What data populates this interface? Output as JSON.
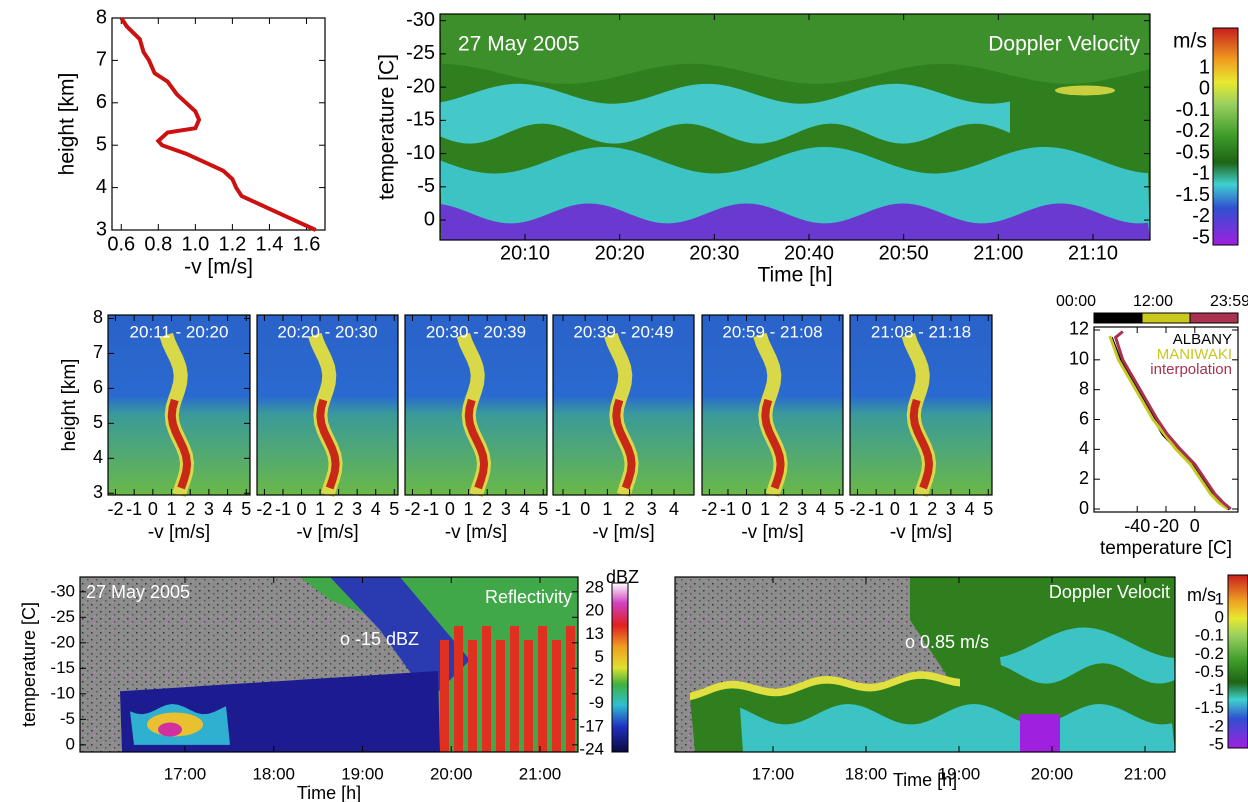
{
  "chart_data": [
    {
      "type": "line",
      "xlabel": "-v [m/s]",
      "ylabel": "height [km]",
      "color": "#cc1111",
      "x": [
        0.6,
        0.63,
        0.7,
        0.72,
        0.75,
        0.78,
        0.85,
        0.9,
        0.95,
        1.0,
        1.02,
        1.0,
        0.85,
        0.8,
        0.82,
        0.95,
        1.05,
        1.15,
        1.2,
        1.22,
        1.25,
        1.35,
        1.45,
        1.55,
        1.65
      ],
      "values": [
        8,
        7.8,
        7.5,
        7.2,
        7,
        6.7,
        6.5,
        6.2,
        6,
        5.8,
        5.6,
        5.4,
        5.3,
        5.1,
        5,
        4.8,
        4.6,
        4.4,
        4.2,
        4,
        3.8,
        3.6,
        3.4,
        3.2,
        3
      ],
      "xlim": [
        0.55,
        1.7
      ],
      "xticks": [
        0.6,
        0.8,
        {
          "value": 1,
          "label": "1.0"
        },
        1.2,
        1.4,
        1.6
      ],
      "ylim": [
        3,
        8
      ],
      "yticks": [
        3,
        4,
        5,
        6,
        7,
        8
      ]
    },
    {
      "type": "heatmap",
      "annotations": [
        "27 May 2005",
        "Doppler Velocity"
      ],
      "xlabel": "Time [h]",
      "ylabel": "temperature [C]",
      "xticks": [
        "20:10",
        "20:20",
        "20:30",
        "20:40",
        "20:50",
        "21:00",
        "21:10"
      ],
      "ylim": [
        3,
        -31
      ],
      "yticks": [
        -30,
        -25,
        -20,
        -15,
        -10,
        -5,
        0
      ],
      "colorbar": {
        "title": "m/s",
        "labels": [
          1,
          0,
          -0.1,
          -0.2,
          -0.5,
          -1,
          -1.5,
          -2,
          -5
        ]
      }
    },
    {
      "type": "heatmap",
      "title": "20:11 - 20:20",
      "xlabel": "-v [m/s]",
      "ylabel": "height [km]",
      "xlim": [
        -2.4,
        5.2
      ],
      "xticks": [
        -2,
        -1,
        0,
        1,
        2,
        3,
        4,
        5
      ],
      "ylim": [
        2.95,
        8.1
      ],
      "yticks": [
        3,
        4,
        5,
        6,
        7,
        8
      ]
    },
    {
      "type": "heatmap",
      "title": "20:20 - 20:30",
      "xlabel": "-v [m/s]",
      "xlim": [
        -2.4,
        5.2
      ],
      "xticks": [
        -2,
        -1,
        0,
        1,
        2,
        3,
        4,
        5
      ]
    },
    {
      "type": "heatmap",
      "title": "20:30 - 20:39",
      "xlabel": "-v [m/s]",
      "xlim": [
        -2.4,
        5.2
      ],
      "xticks": [
        -2,
        -1,
        0,
        1,
        2,
        3,
        4,
        5
      ]
    },
    {
      "type": "heatmap",
      "title": "20:39 - 20:49",
      "xlabel": "-v [m/s]",
      "xlim": [
        -1.45,
        4.9
      ],
      "xticks": [
        -1,
        0,
        1,
        2,
        3,
        4
      ]
    },
    {
      "type": "heatmap",
      "title": "20:59 - 21:08",
      "xlabel": "-v [m/s]",
      "xlim": [
        -2.4,
        5.2
      ],
      "xticks": [
        -2,
        -1,
        0,
        1,
        2,
        3,
        4,
        5
      ]
    },
    {
      "type": "heatmap",
      "title": "21:08 - 21:18",
      "xlabel": "-v [m/s]",
      "xlim": [
        -2.4,
        5.2
      ],
      "xticks": [
        -2,
        -1,
        0,
        1,
        2,
        3,
        4,
        5
      ]
    },
    {
      "type": "line",
      "xlabel": "temperature [C]",
      "xlim": [
        -70,
        30
      ],
      "xticks": [
        -40,
        -20,
        0
      ],
      "ylim": [
        -0.2,
        12.2
      ],
      "yticks": [
        0,
        2,
        4,
        6,
        8,
        10,
        12
      ],
      "colorbar": {
        "labels": [
          "00:00",
          "12:00",
          "23:59"
        ],
        "colors": [
          "#000000",
          "#c8c81e",
          "#a8324f"
        ]
      },
      "series": [
        {
          "name": "ALBANY",
          "color": "#000000",
          "x": [
            -58,
            -52,
            -40,
            -28,
            -22,
            -12,
            -2,
            5,
            12,
            18,
            24
          ],
          "values": [
            11.5,
            10,
            8,
            6,
            5,
            4,
            3,
            2,
            1,
            0.4,
            0
          ]
        },
        {
          "name": "MANIWAKI",
          "color": "#c8c81e",
          "x": [
            -59,
            -53,
            -41,
            -29,
            -21,
            -13,
            -3,
            4,
            11,
            17,
            23
          ],
          "values": [
            11.6,
            10,
            8,
            6,
            5,
            4,
            3,
            2,
            1,
            0.4,
            0
          ]
        },
        {
          "name": "interpolation",
          "color": "#a8324f",
          "x": [
            -50,
            -55,
            -50,
            -38,
            -26,
            -19,
            -10,
            0,
            7,
            14,
            20,
            25
          ],
          "values": [
            11.9,
            11.5,
            10,
            8,
            6,
            5,
            4,
            3,
            2,
            1,
            0.4,
            0
          ]
        }
      ]
    },
    {
      "type": "heatmap",
      "annotations": [
        "27 May 2005",
        "Reflectivity",
        "o -15 dBZ"
      ],
      "xlabel": "Time [h]",
      "ylabel": "temperature [C]",
      "xticks": [
        "17:00",
        "18:00",
        "19:00",
        "20:00",
        "21:00"
      ],
      "ylim": [
        1.4,
        -32.9
      ],
      "yticks": [
        -30,
        -25,
        -20,
        -15,
        -10,
        -5,
        0
      ],
      "colorbar": {
        "title": "dBZ",
        "labels": [
          28,
          20,
          13,
          5,
          -2,
          -9,
          -17,
          -24
        ]
      }
    },
    {
      "type": "heatmap",
      "annotations": [
        "Doppler Velocit",
        "o 0.85 m/s"
      ],
      "xlabel": "Time [h]",
      "xticks": [
        "17:00",
        "18:00",
        "19:00",
        "20:00",
        "21:00"
      ],
      "ylim": [
        1.4,
        -32.9
      ],
      "colorbar": {
        "title": "m/s",
        "labels": [
          1,
          0,
          -0.1,
          -0.2,
          -0.5,
          -1,
          -1.5,
          -2,
          -5
        ]
      }
    }
  ]
}
